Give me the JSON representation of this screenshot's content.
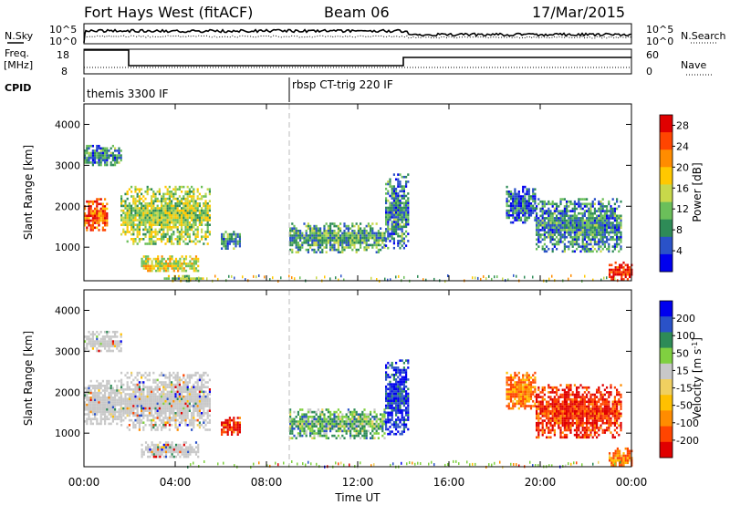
{
  "header": {
    "station": "Fort Hays West (fitACF)",
    "beam": "Beam 06",
    "date": "17/Mar/2015"
  },
  "noise_panel": {
    "left_label": "N.Sky",
    "right_label": "N.Search",
    "left_ticks": [
      "10^5",
      "10^0"
    ],
    "right_ticks": [
      "10^5",
      "10^0"
    ]
  },
  "freq_panel": {
    "left_label_1": "Freq.",
    "left_label_2": "[MHz]",
    "right_label": "Nave",
    "left_ticks": [
      "18",
      "8"
    ],
    "right_ticks": [
      "60",
      "0"
    ]
  },
  "cpid_panel": {
    "label": "CPID",
    "modes": [
      {
        "name": "themis 3300 IF",
        "start_hour": 0
      },
      {
        "name": "rbsp CT-trig 220 IF",
        "start_hour": 9.0
      }
    ]
  },
  "chart_data": [
    {
      "type": "heatmap",
      "title": "",
      "xlabel": "",
      "ylabel": "Slant Range [km]",
      "xlim": [
        0,
        24
      ],
      "ylim": [
        180,
        4500
      ],
      "yticks": [
        "1000",
        "2000",
        "3000",
        "4000"
      ],
      "colorbar": {
        "label": "Power [dB]",
        "range": [
          0,
          30
        ],
        "ticks": [
          "4",
          "8",
          "12",
          "16",
          "20",
          "24",
          "28"
        ]
      },
      "echo_regions": [
        {
          "t_start": 0.0,
          "t_end": 1.0,
          "range_km": [
            1400,
            2200
          ],
          "power_db": 24
        },
        {
          "t_start": 0.0,
          "t_end": 1.6,
          "range_km": [
            3000,
            3500
          ],
          "power_db": 8
        },
        {
          "t_start": 1.6,
          "t_end": 5.5,
          "range_km": [
            1100,
            2500
          ],
          "power_db": 14
        },
        {
          "t_start": 2.5,
          "t_end": 5.0,
          "range_km": [
            400,
            800
          ],
          "power_db": 16
        },
        {
          "t_start": 3.5,
          "t_end": 5.2,
          "range_km": [
            200,
            320
          ],
          "power_db": 12
        },
        {
          "t_start": 6.0,
          "t_end": 6.8,
          "range_km": [
            950,
            1400
          ],
          "power_db": 8
        },
        {
          "t_start": 9.0,
          "t_end": 13.2,
          "range_km": [
            900,
            1600
          ],
          "power_db": 10
        },
        {
          "t_start": 13.2,
          "t_end": 14.2,
          "range_km": [
            1000,
            2800
          ],
          "power_db": 8
        },
        {
          "t_start": 18.5,
          "t_end": 19.8,
          "range_km": [
            1600,
            2500
          ],
          "power_db": 6
        },
        {
          "t_start": 19.8,
          "t_end": 23.5,
          "range_km": [
            900,
            2200
          ],
          "power_db": 8
        },
        {
          "t_start": 23.0,
          "t_end": 24.0,
          "range_km": [
            200,
            650
          ],
          "power_db": 28
        }
      ]
    },
    {
      "type": "heatmap",
      "title": "",
      "xlabel": "Time UT",
      "ylabel": "Slant Range [km]",
      "xlim": [
        0,
        24
      ],
      "ylim": [
        180,
        4500
      ],
      "xticks": [
        "00:00",
        "04:00",
        "08:00",
        "12:00",
        "16:00",
        "20:00",
        "00:00"
      ],
      "yticks": [
        "1000",
        "2000",
        "3000",
        "4000"
      ],
      "colorbar": {
        "label": "Velocity [m s^-1]",
        "range": [
          -250,
          250
        ],
        "ticks": [
          "200",
          "100",
          "50",
          "15",
          "-15",
          "-50",
          "-100",
          "-200"
        ]
      },
      "echo_regions": [
        {
          "t_start": 0.0,
          "t_end": 1.6,
          "range_km": [
            1200,
            2300
          ],
          "velocity": 0
        },
        {
          "t_start": 0.0,
          "t_end": 1.6,
          "range_km": [
            3000,
            3500
          ],
          "velocity": 0
        },
        {
          "t_start": 1.6,
          "t_end": 5.5,
          "range_km": [
            1100,
            2500
          ],
          "velocity": 0
        },
        {
          "t_start": 2.5,
          "t_end": 5.0,
          "range_km": [
            400,
            800
          ],
          "velocity": 0
        },
        {
          "t_start": 6.0,
          "t_end": 6.8,
          "range_km": [
            950,
            1400
          ],
          "velocity": -200
        },
        {
          "t_start": 9.0,
          "t_end": 13.2,
          "range_km": [
            900,
            1600
          ],
          "velocity": 50
        },
        {
          "t_start": 13.2,
          "t_end": 14.2,
          "range_km": [
            1000,
            2800
          ],
          "velocity": 200
        },
        {
          "t_start": 18.5,
          "t_end": 19.8,
          "range_km": [
            1600,
            2500
          ],
          "velocity": -100
        },
        {
          "t_start": 19.8,
          "t_end": 23.5,
          "range_km": [
            900,
            2200
          ],
          "velocity": -200
        },
        {
          "t_start": 23.0,
          "t_end": 24.0,
          "range_km": [
            200,
            650
          ],
          "velocity": -100
        }
      ]
    }
  ],
  "colors": {
    "power_scale": [
      "#0000ee",
      "#2a52c8",
      "#2e8b57",
      "#6bbf5a",
      "#c8d84a",
      "#ffc800",
      "#ff8c00",
      "#ff4500",
      "#e00000"
    ],
    "velocity_scale": [
      "#e00000",
      "#ff4500",
      "#ff8c00",
      "#ffc000",
      "#f0d060",
      "#c8c8c8",
      "#80d040",
      "#2e8b57",
      "#2a52c8",
      "#0000ee"
    ]
  }
}
